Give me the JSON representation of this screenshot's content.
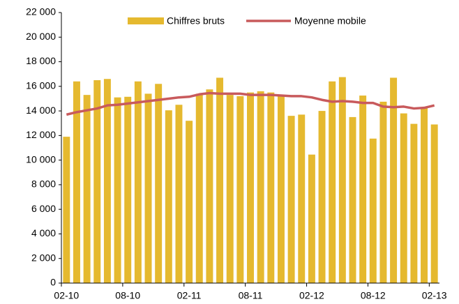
{
  "chart_data": {
    "type": "combo",
    "categories": [
      "02-10",
      null,
      null,
      null,
      null,
      null,
      "08-10",
      null,
      null,
      null,
      null,
      null,
      "02-11",
      null,
      null,
      null,
      null,
      null,
      "08-11",
      null,
      null,
      null,
      null,
      null,
      "02-12",
      null,
      null,
      null,
      null,
      null,
      "08-12",
      null,
      null,
      null,
      null,
      null,
      "02-13"
    ],
    "series": [
      {
        "name": "Chiffres bruts",
        "type": "bar",
        "color": "#e5b92f",
        "values": [
          11900,
          16400,
          15300,
          16500,
          16600,
          15100,
          15150,
          16400,
          15400,
          16200,
          14050,
          14500,
          13200,
          15400,
          15750,
          16700,
          15300,
          15200,
          15500,
          15600,
          15500,
          15200,
          13600,
          13700,
          10450,
          14000,
          16400,
          16750,
          13500,
          15250,
          11750,
          14750,
          16700,
          13800,
          12950,
          14300,
          12900
        ]
      },
      {
        "name": "Moyenne mobile",
        "type": "line",
        "color": "#c85a5c",
        "values": [
          13700,
          13900,
          14050,
          14200,
          14450,
          14500,
          14600,
          14700,
          14800,
          14900,
          15000,
          15100,
          15150,
          15350,
          15450,
          15400,
          15400,
          15400,
          15300,
          15300,
          15300,
          15250,
          15200,
          15200,
          15100,
          14900,
          14750,
          14800,
          14750,
          14650,
          14650,
          14350,
          14300,
          14350,
          14200,
          14250,
          14450
        ]
      }
    ],
    "ylim": [
      0,
      22000
    ],
    "yticks": [
      {
        "value": 0,
        "label": "0"
      },
      {
        "value": 2000,
        "label": "2 000"
      },
      {
        "value": 4000,
        "label": "4 000"
      },
      {
        "value": 6000,
        "label": "6 000"
      },
      {
        "value": 8000,
        "label": "8 000"
      },
      {
        "value": 10000,
        "label": "10 000"
      },
      {
        "value": 12000,
        "label": "12 000"
      },
      {
        "value": 14000,
        "label": "14 000"
      },
      {
        "value": 16000,
        "label": "16 000"
      },
      {
        "value": 18000,
        "label": "18 000"
      },
      {
        "value": 20000,
        "label": "20 000"
      },
      {
        "value": 22000,
        "label": "22 000"
      }
    ],
    "legend": "top"
  }
}
